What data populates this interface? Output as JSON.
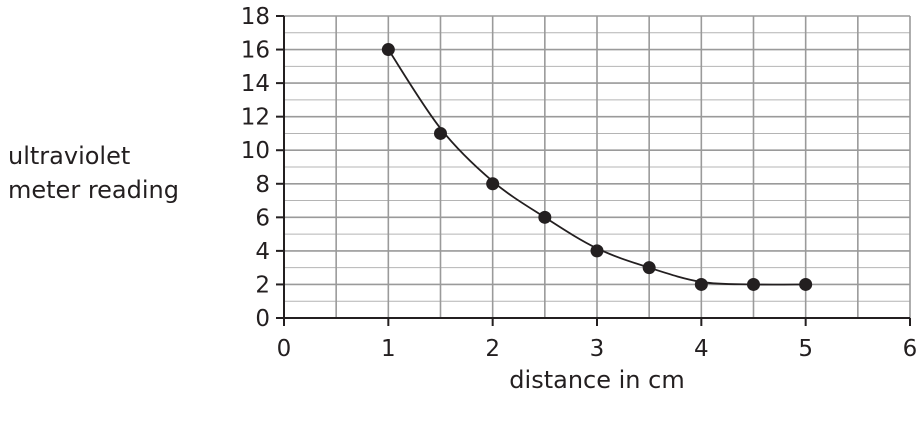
{
  "chart_data": {
    "type": "scatter",
    "title": "",
    "xlabel": "distance in cm",
    "ylabel_lines": [
      "ultraviolet",
      "meter reading"
    ],
    "xlim": [
      0,
      6
    ],
    "ylim": [
      0,
      18
    ],
    "x_ticks": [
      0,
      1,
      2,
      3,
      4,
      5,
      6
    ],
    "y_ticks": [
      0,
      2,
      4,
      6,
      8,
      10,
      12,
      14,
      16,
      18
    ],
    "grid": true,
    "series": [
      {
        "x": [
          1,
          1.5,
          2,
          2.5,
          3,
          3.5,
          4,
          4.5,
          5
        ],
        "y": [
          16,
          11,
          8,
          6,
          4,
          3,
          2,
          2,
          2
        ]
      }
    ],
    "curve_of_best_fit": true,
    "colors": {
      "ink": "#231f20",
      "grid": "#9a9a9a"
    }
  }
}
